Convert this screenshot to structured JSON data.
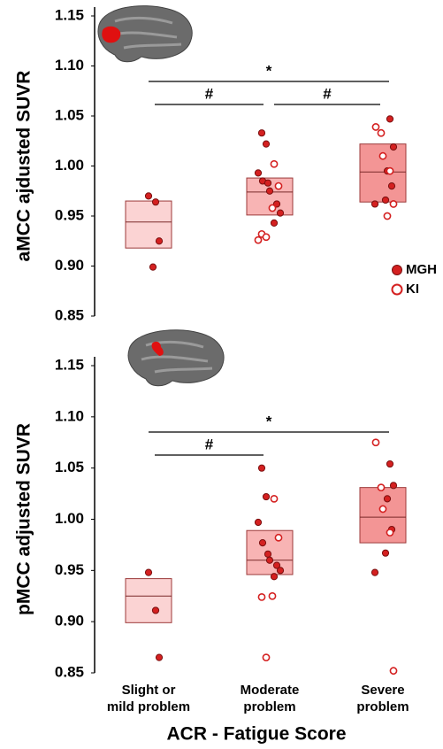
{
  "chart_data": [
    {
      "type": "strip",
      "ylabel": "aMCC ajdusted SUVR",
      "ylim": [
        0.85,
        1.15
      ],
      "yticks": [
        0.85,
        {
          "value": 0.9,
          "label": "0.90"
        },
        0.95,
        {
          "value": 1.0,
          "label": "1.00"
        },
        1.05,
        {
          "value": 1.1,
          "label": "1.10"
        },
        1.15
      ],
      "box_colors": [
        "#fbd3d3",
        "#f8b4b4",
        "#f39595"
      ],
      "q1": [
        0.918,
        0.951,
        0.964
      ],
      "median": [
        0.944,
        0.974,
        0.994
      ],
      "q3": [
        0.965,
        0.988,
        1.022
      ],
      "annotations": [
        "*",
        "#",
        "#"
      ],
      "legend": "lower right",
      "series": [
        {
          "name": "MGH",
          "marker": "filled",
          "color": "#d42020",
          "values": [
            [
              0.97,
              0.964,
              0.925,
              0.899
            ],
            [
              1.033,
              1.022,
              0.993,
              0.985,
              0.983,
              0.975,
              0.962,
              0.953,
              0.943
            ],
            [
              1.047,
              1.019,
              0.995,
              0.98,
              0.966,
              0.962
            ]
          ]
        },
        {
          "name": "KI",
          "marker": "open",
          "color": "#d42020",
          "values": [
            [],
            [
              1.002,
              0.98,
              0.958,
              0.932,
              0.929,
              0.926
            ],
            [
              1.039,
              1.033,
              1.01,
              0.995,
              0.962,
              0.95
            ]
          ]
        }
      ]
    },
    {
      "type": "strip",
      "ylabel": "pMCC adjusted SUVR",
      "ylim": [
        0.85,
        1.15
      ],
      "yticks": [
        0.85,
        {
          "value": 0.9,
          "label": "0.90"
        },
        0.95,
        {
          "value": 1.0,
          "label": "1.00"
        },
        1.05,
        {
          "value": 1.1,
          "label": "1.10"
        },
        1.15
      ],
      "box_colors": [
        "#fbd3d3",
        "#f8b4b4",
        "#f39595"
      ],
      "q1": [
        0.899,
        0.946,
        0.977
      ],
      "median": [
        0.925,
        0.96,
        1.002
      ],
      "q3": [
        0.942,
        0.989,
        1.031
      ],
      "annotations": [
        "*",
        "#"
      ],
      "categories": [
        [
          "Slight or",
          "mild problem"
        ],
        [
          "Moderate",
          "problem"
        ],
        [
          "Severe",
          "problem"
        ]
      ],
      "xlabel": "ACR - Fatigue Score",
      "series": [
        {
          "marker": "filled",
          "color": "#d42020",
          "values": [
            [
              0.948,
              0.911,
              0.865
            ],
            [
              1.05,
              1.022,
              0.997,
              0.977,
              0.966,
              0.96,
              0.955,
              0.95,
              0.944
            ],
            [
              1.054,
              1.033,
              1.02,
              0.99,
              0.967,
              0.948
            ]
          ]
        },
        {
          "marker": "open",
          "color": "#d42020",
          "values": [
            [],
            [
              1.02,
              0.982,
              0.925,
              0.924,
              0.865
            ],
            [
              1.075,
              1.031,
              1.01,
              0.987,
              0.852
            ]
          ]
        }
      ]
    }
  ]
}
